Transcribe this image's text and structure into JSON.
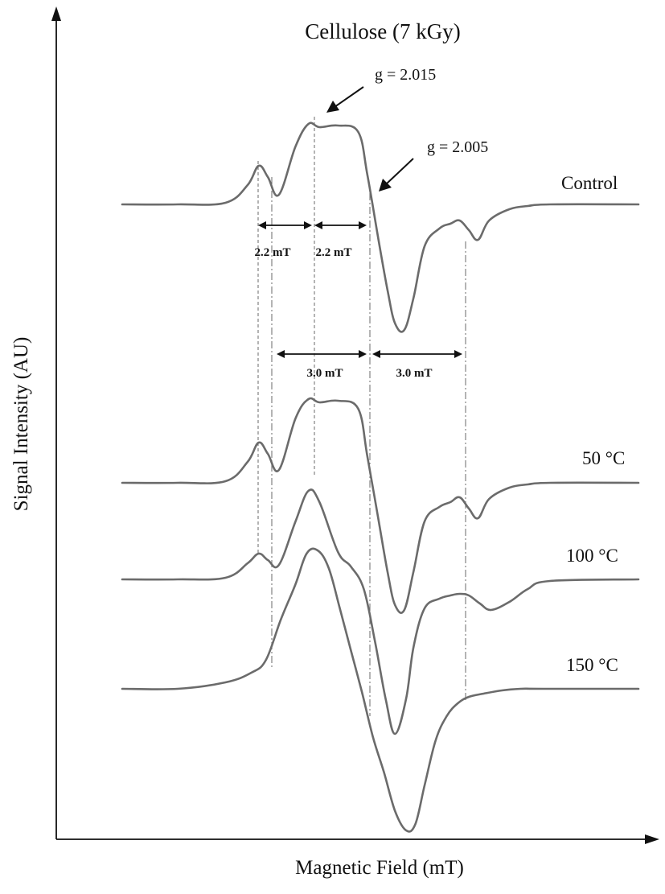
{
  "chart_data": {
    "type": "line",
    "title": "Cellulose (7 kGy)",
    "xlabel": "Magnetic Field (mT)",
    "ylabel": "Signal Intensity (AU)",
    "x_unit": "mT",
    "x_ticks_shown": false,
    "y_ticks_shown": false,
    "grid": false,
    "xlim": [
      0,
      14
    ],
    "ylim": [
      -10,
      10
    ],
    "series": [
      {
        "name": "Control",
        "x": [
          0,
          1.5,
          2.8,
          3.4,
          3.7,
          3.95,
          4.25,
          4.7,
          5.05,
          5.35,
          5.85,
          6.4,
          6.65,
          6.95,
          7.2,
          7.4,
          7.65,
          7.9,
          8.2,
          8.6,
          8.9,
          9.15,
          9.4,
          9.65,
          9.95,
          10.5,
          11.0,
          11.6,
          14.0
        ],
        "y": [
          0,
          0,
          0.1,
          1.2,
          2.4,
          1.7,
          0.6,
          3.6,
          5.0,
          4.8,
          4.9,
          4.5,
          1.8,
          -2.2,
          -5.4,
          -7.4,
          -7.8,
          -5.8,
          -2.6,
          -1.5,
          -1.2,
          -1.0,
          -1.6,
          -2.2,
          -1.0,
          -0.3,
          -0.1,
          0,
          0
        ]
      },
      {
        "name": "50 °C",
        "x": [
          0,
          1.5,
          2.8,
          3.4,
          3.7,
          3.95,
          4.25,
          4.7,
          5.05,
          5.35,
          5.85,
          6.4,
          6.65,
          6.95,
          7.2,
          7.4,
          7.65,
          7.9,
          8.2,
          8.6,
          8.9,
          9.15,
          9.4,
          9.65,
          9.95,
          10.5,
          11.0,
          11.6,
          14.0
        ],
        "y": [
          0,
          0,
          0.1,
          1.3,
          2.5,
          1.8,
          0.8,
          4.0,
          5.2,
          5.0,
          5.1,
          4.6,
          1.6,
          -2.3,
          -5.6,
          -7.6,
          -7.9,
          -5.5,
          -2.4,
          -1.5,
          -1.2,
          -0.9,
          -1.6,
          -2.2,
          -1.0,
          -0.3,
          -0.1,
          0,
          0
        ]
      },
      {
        "name": "100 °C",
        "x": [
          0,
          1.5,
          2.8,
          3.4,
          3.7,
          3.95,
          4.25,
          4.7,
          5.05,
          5.35,
          5.85,
          6.2,
          6.55,
          6.85,
          7.15,
          7.4,
          7.7,
          7.9,
          8.2,
          8.6,
          8.9,
          9.15,
          9.4,
          9.7,
          10.0,
          10.5,
          11.0,
          11.6,
          14.0
        ],
        "y": [
          0,
          0,
          0.1,
          1.0,
          1.6,
          1.2,
          0.9,
          3.6,
          5.5,
          4.8,
          1.7,
          0.8,
          -0.6,
          -3.8,
          -7.5,
          -9.6,
          -7.4,
          -4.2,
          -1.8,
          -1.2,
          -1.0,
          -0.9,
          -1.0,
          -1.5,
          -1.9,
          -1.4,
          -0.6,
          -0.1,
          0
        ]
      },
      {
        "name": "150 °C",
        "x": [
          0,
          1.5,
          2.8,
          3.5,
          3.9,
          4.3,
          4.7,
          5.0,
          5.3,
          5.6,
          5.9,
          6.2,
          6.5,
          6.8,
          7.1,
          7.4,
          7.7,
          7.95,
          8.2,
          8.5,
          8.8,
          9.1,
          9.4,
          9.8,
          10.3,
          10.8,
          11.4,
          14.0
        ],
        "y": [
          0,
          0,
          0.4,
          1.0,
          1.8,
          4.3,
          6.5,
          8.4,
          8.6,
          7.5,
          5.0,
          2.4,
          -0.2,
          -3.0,
          -5.2,
          -7.6,
          -8.8,
          -8.4,
          -6.0,
          -3.2,
          -1.7,
          -0.9,
          -0.5,
          -0.3,
          -0.1,
          0,
          0,
          0
        ]
      }
    ],
    "annotations": [
      {
        "text": "g = 2.015",
        "x": 5.1
      },
      {
        "text": "g = 2.005",
        "x": 6.95
      }
    ],
    "hyperfine_splittings": [
      {
        "label": "2.2 mT",
        "from": 3.7,
        "to": 5.05
      },
      {
        "label": "2.2 mT",
        "from": 5.05,
        "to": 6.95
      },
      {
        "label": "3.0 mT",
        "from": 4.05,
        "to": 6.95
      },
      {
        "label": "3.0 mT",
        "from": 6.95,
        "to": 9.95
      }
    ],
    "colors": {
      "curves": "#6b6b6b",
      "axes": "#111111",
      "guides": "#777777"
    }
  }
}
